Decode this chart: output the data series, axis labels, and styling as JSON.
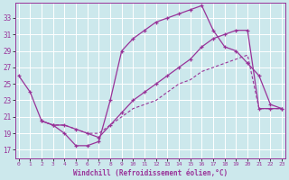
{
  "xlabel": "Windchill (Refroidissement éolien,°C)",
  "bg_color": "#cce8ec",
  "grid_color": "#ffffff",
  "line_color": "#993399",
  "x_ticks": [
    0,
    1,
    2,
    3,
    4,
    5,
    6,
    7,
    8,
    9,
    10,
    11,
    12,
    13,
    14,
    15,
    16,
    17,
    18,
    19,
    20,
    21,
    22,
    23
  ],
  "y_ticks": [
    17,
    19,
    21,
    23,
    25,
    27,
    29,
    31,
    33
  ],
  "xlim": [
    -0.3,
    23.3
  ],
  "ylim": [
    16.0,
    34.8
  ],
  "line1_x": [
    0,
    1,
    2,
    3,
    4,
    5,
    6,
    7,
    8,
    9,
    10,
    11,
    12,
    13,
    14,
    15,
    16,
    17,
    18,
    19,
    20,
    21,
    22,
    23
  ],
  "line1_y": [
    26.0,
    24.0,
    20.5,
    20.0,
    19.0,
    17.5,
    17.5,
    18.0,
    23.0,
    29.0,
    30.5,
    31.5,
    32.5,
    33.0,
    33.5,
    34.0,
    34.5,
    31.5,
    29.5,
    29.0,
    27.5,
    26.0,
    22.5,
    22.0
  ],
  "line2_x": [
    2,
    3,
    4,
    5,
    6,
    7,
    8,
    9,
    10,
    11,
    12,
    13,
    14,
    15,
    16,
    17,
    18,
    19,
    20,
    21,
    22,
    23
  ],
  "line2_y": [
    20.5,
    20.0,
    20.0,
    19.5,
    19.0,
    18.5,
    20.0,
    21.5,
    23.0,
    24.0,
    25.0,
    26.0,
    27.0,
    28.0,
    29.5,
    30.5,
    31.0,
    31.5,
    31.5,
    22.0,
    22.0,
    22.0
  ],
  "line3_x": [
    2,
    3,
    4,
    5,
    6,
    7,
    8,
    9,
    10,
    11,
    12,
    13,
    14,
    15,
    16,
    17,
    18,
    19,
    20,
    21,
    22,
    23
  ],
  "line3_y": [
    20.5,
    20.0,
    20.0,
    19.5,
    19.0,
    19.0,
    20.0,
    21.0,
    22.0,
    22.5,
    23.0,
    24.0,
    25.0,
    25.5,
    26.5,
    27.0,
    27.5,
    28.0,
    28.5,
    22.0,
    22.0,
    22.0
  ]
}
